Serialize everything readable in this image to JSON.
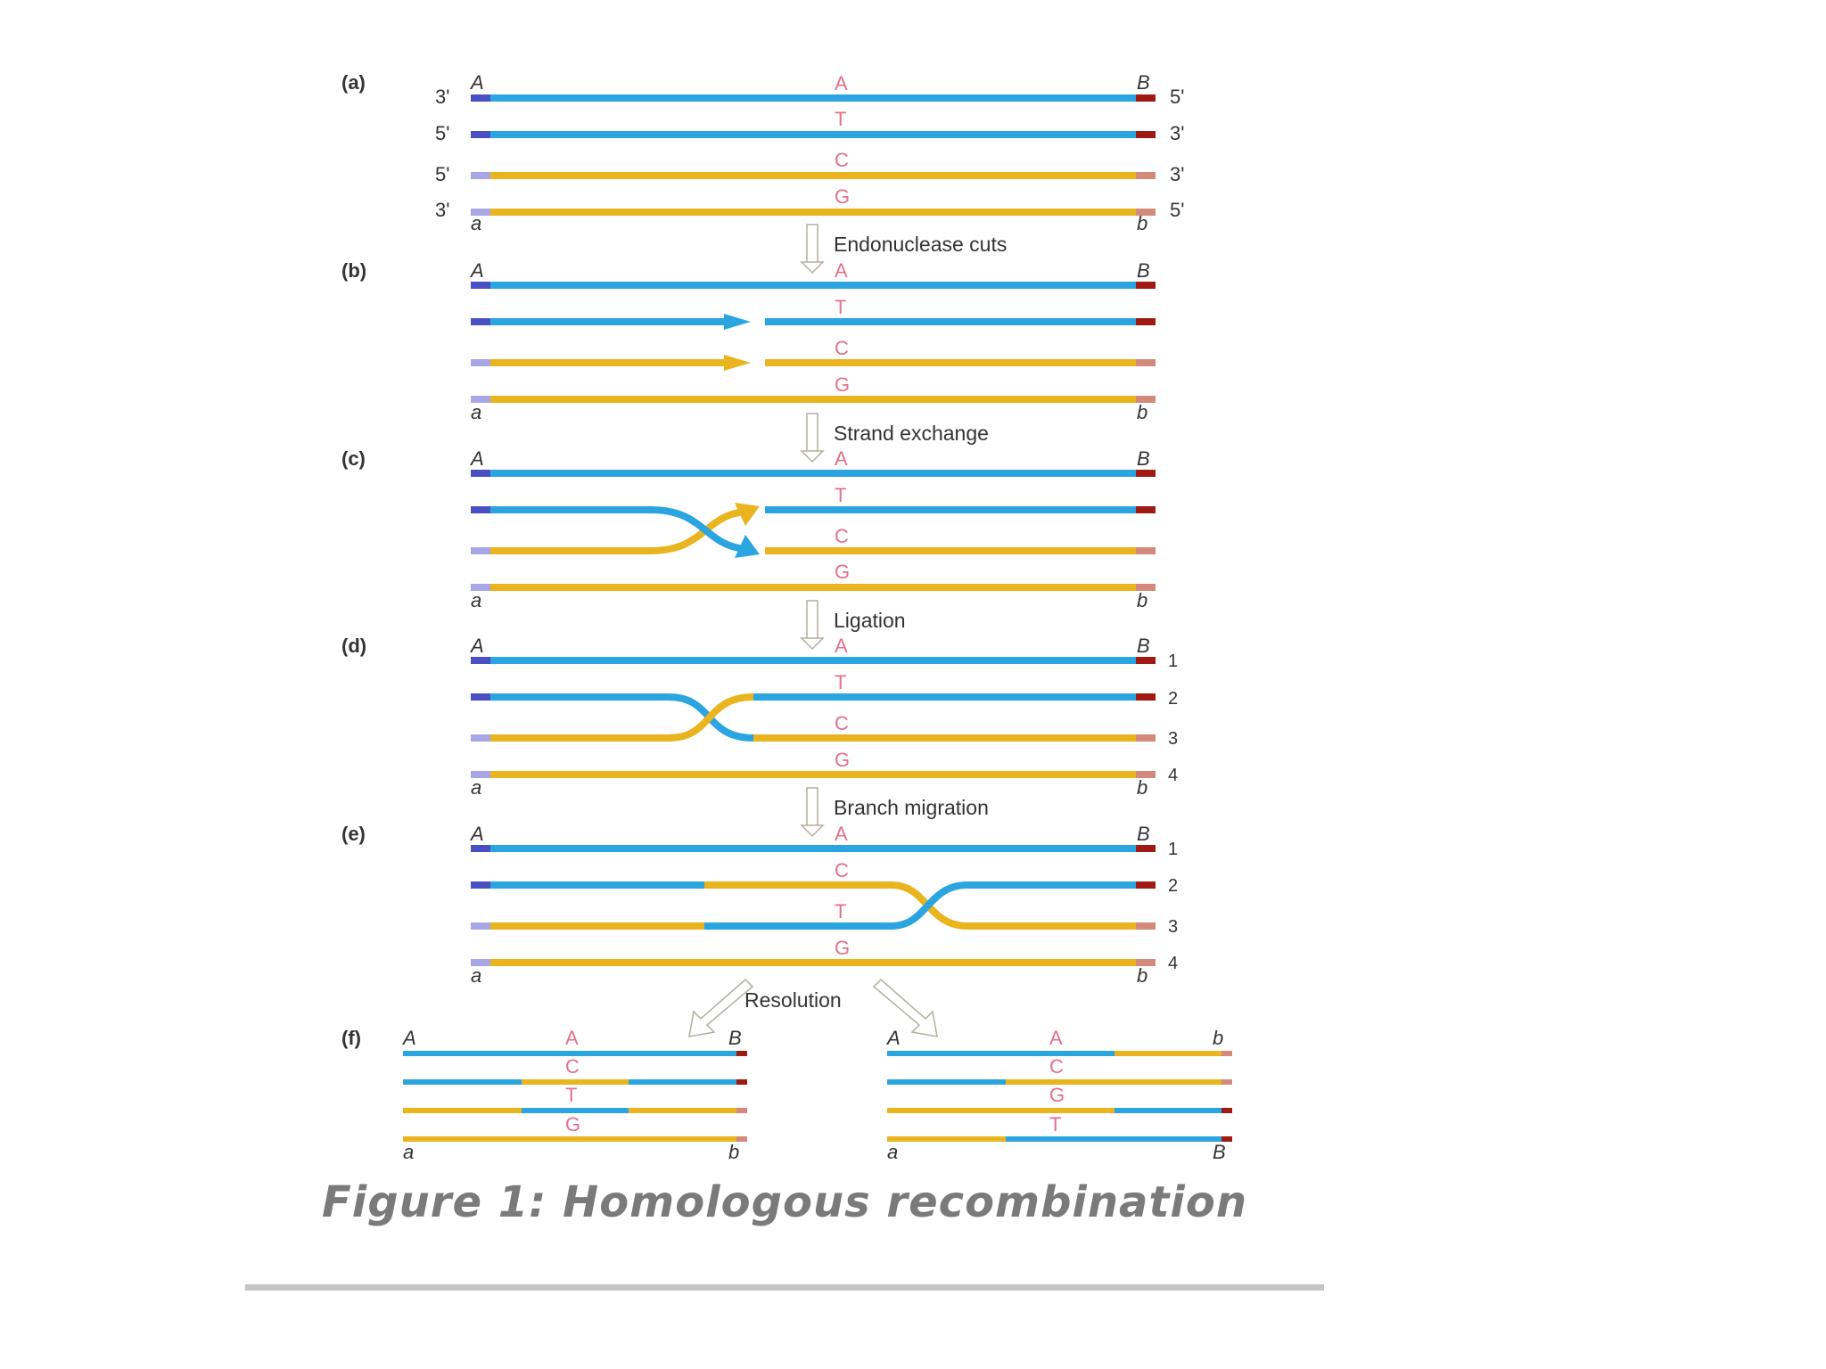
{
  "colors": {
    "blue": "#2aa5e0",
    "yellow": "#e9b41d",
    "blue_end": "#4a4fc4",
    "red_end": "#9e1a12",
    "light_blue_end": "#a9a6e6",
    "light_red_end": "#d38a7a",
    "base_letter": "#e4708a",
    "arrow": "#cfc9b8"
  },
  "panels": {
    "a": {
      "label": "(a)",
      "left_ends": [
        "3'",
        "5'",
        "5'",
        "3'"
      ],
      "right_ends": [
        "5'",
        "3'",
        "3'",
        "5'"
      ],
      "top_left": "A",
      "top_right": "B",
      "bottom_left": "a",
      "bottom_right": "b",
      "bases": [
        "A",
        "T",
        "C",
        "G"
      ]
    },
    "b": {
      "label": "(b)",
      "top_left": "A",
      "top_right": "B",
      "bottom_left": "a",
      "bottom_right": "b",
      "bases": [
        "A",
        "T",
        "C",
        "G"
      ]
    },
    "c": {
      "label": "(c)",
      "top_left": "A",
      "top_right": "B",
      "bottom_left": "a",
      "bottom_right": "b",
      "bases": [
        "A",
        "T",
        "C",
        "G"
      ]
    },
    "d": {
      "label": "(d)",
      "top_left": "A",
      "top_right": "B",
      "bottom_left": "a",
      "bottom_right": "b",
      "bases": [
        "A",
        "T",
        "C",
        "G"
      ],
      "strand_numbers": [
        "1",
        "2",
        "3",
        "4"
      ]
    },
    "e": {
      "label": "(e)",
      "top_left": "A",
      "top_right": "B",
      "bottom_left": "a",
      "bottom_right": "b",
      "bases": [
        "A",
        "C",
        "T",
        "G"
      ],
      "strand_numbers": [
        "1",
        "2",
        "3",
        "4"
      ]
    },
    "f": {
      "label": "(f)",
      "left": {
        "top_left": "A",
        "top_right": "B",
        "bottom_left": "a",
        "bottom_right": "b",
        "bases": [
          "A",
          "C",
          "T",
          "G"
        ]
      },
      "right": {
        "top_left": "A",
        "top_right": "b",
        "bottom_left": "a",
        "bottom_right": "B",
        "bases": [
          "A",
          "C",
          "G",
          "T"
        ]
      }
    }
  },
  "steps": {
    "endonuclease": "Endonuclease cuts",
    "exchange": "Strand exchange",
    "ligation": "Ligation",
    "migration": "Branch migration",
    "resolution": "Resolution"
  },
  "caption": "Figure 1: Homologous recombination"
}
